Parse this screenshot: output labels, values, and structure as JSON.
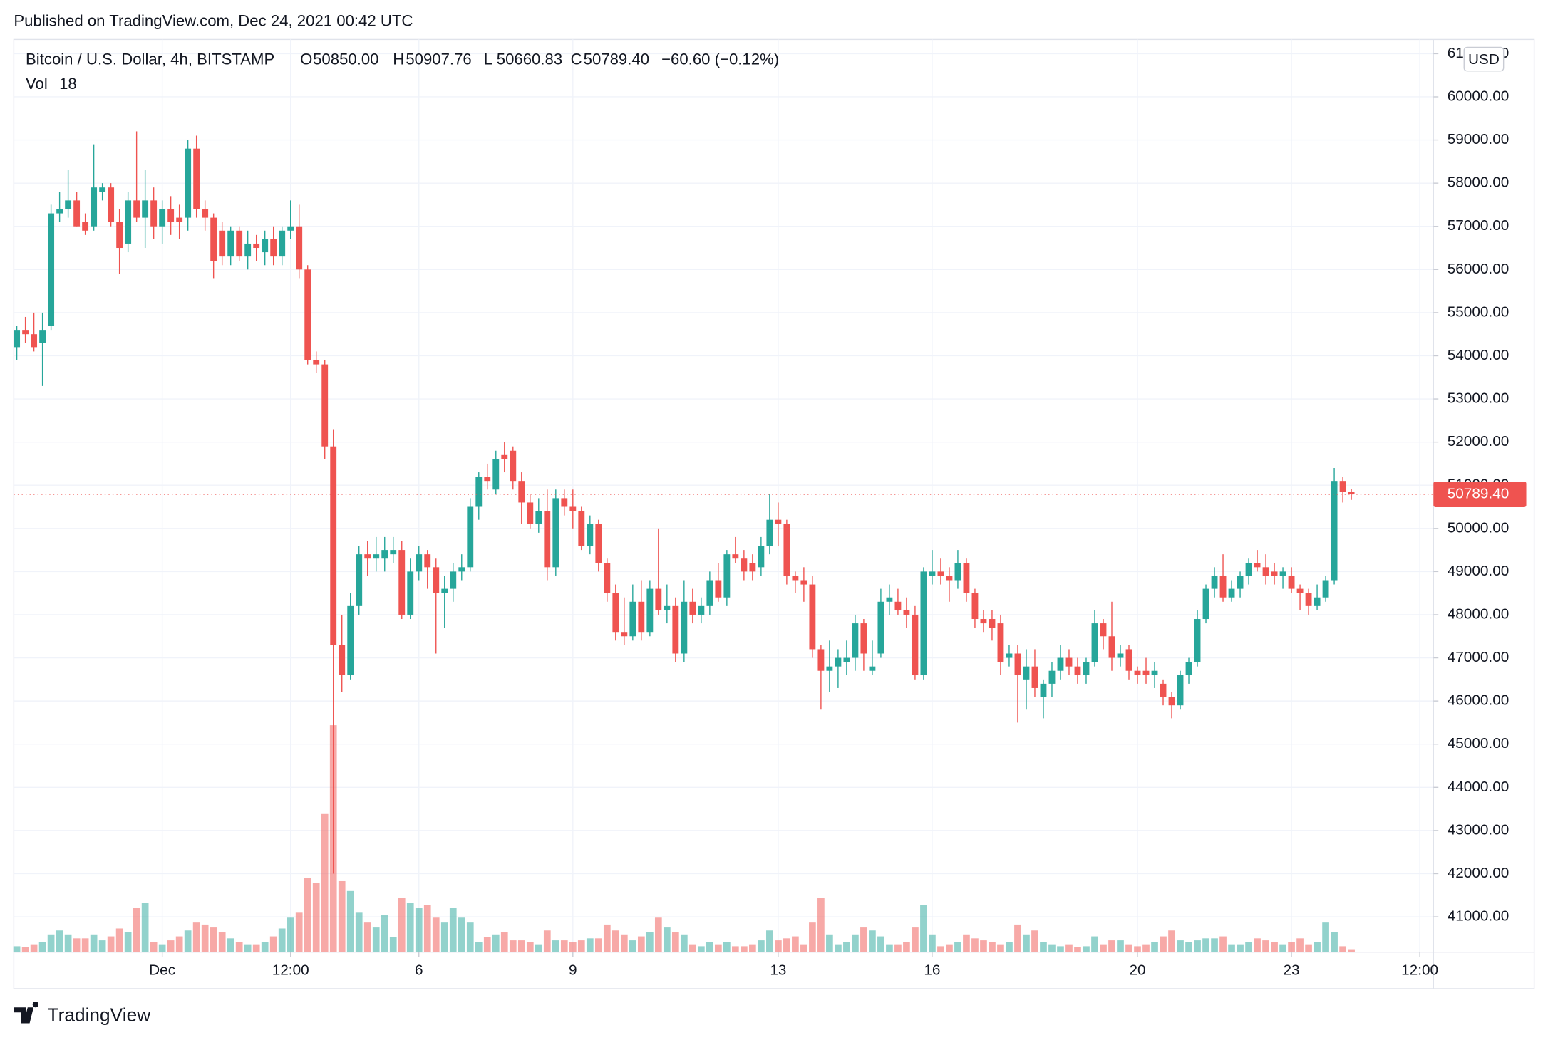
{
  "published": "Published on TradingView.com, Dec 24, 2021 00:42 UTC",
  "brand": "TradingView",
  "chart_data": {
    "type": "candlestick",
    "title": "Bitcoin / U.S. Dollar, 4h, BITSTAMP",
    "ohlc_labels": [
      "O",
      "H",
      "L",
      "C"
    ],
    "ohlc_value_labels": [
      "50850.00",
      "50907.76",
      "50660.83",
      "50789.40"
    ],
    "change_label": "−60.60 (−0.12%)",
    "volume_label": "Vol",
    "currency": "USD",
    "last_price_label": "50789.40",
    "up_color": "#26a69a",
    "down_color": "#ef5350",
    "grid": true,
    "xlim": [
      -0.35,
      165.6
    ],
    "ylim": [
      40180,
      61330
    ],
    "xticks": [
      {
        "value": 17,
        "label": "Dec"
      },
      {
        "value": 32,
        "label": "12:00"
      },
      {
        "value": 47,
        "label": "6"
      },
      {
        "value": 65,
        "label": "9"
      },
      {
        "value": 89,
        "label": "13"
      },
      {
        "value": 107,
        "label": "16"
      },
      {
        "value": 131,
        "label": "20"
      },
      {
        "value": 149,
        "label": "23"
      },
      {
        "value": 164,
        "label": "12:00"
      }
    ],
    "yticks": [
      {
        "value": 41000,
        "label": "41000.00"
      },
      {
        "value": 42000,
        "label": "42000.00"
      },
      {
        "value": 43000,
        "label": "43000.00"
      },
      {
        "value": 44000,
        "label": "44000.00"
      },
      {
        "value": 45000,
        "label": "45000.00"
      },
      {
        "value": 46000,
        "label": "46000.00"
      },
      {
        "value": 47000,
        "label": "47000.00"
      },
      {
        "value": 48000,
        "label": "48000.00"
      },
      {
        "value": 49000,
        "label": "49000.00"
      },
      {
        "value": 50000,
        "label": "50000.00"
      },
      {
        "value": 51000,
        "label": "51000.00"
      },
      {
        "value": 52000,
        "label": "52000.00"
      },
      {
        "value": 53000,
        "label": "53000.00"
      },
      {
        "value": 54000,
        "label": "54000.00"
      },
      {
        "value": 55000,
        "label": "55000.00"
      },
      {
        "value": 56000,
        "label": "56000.00"
      },
      {
        "value": 57000,
        "label": "57000.00"
      },
      {
        "value": 58000,
        "label": "58000.00"
      },
      {
        "value": 59000,
        "label": "59000.00"
      },
      {
        "value": 60000,
        "label": "60000.00"
      },
      {
        "value": 61000,
        "label": "61000.00"
      }
    ],
    "ohlc": [
      [
        54200,
        54700,
        53900,
        54600
      ],
      [
        54600,
        54900,
        54300,
        54500
      ],
      [
        54500,
        55000,
        54100,
        54200
      ],
      [
        54300,
        55000,
        53300,
        54600
      ],
      [
        54700,
        57500,
        54600,
        57300
      ],
      [
        57300,
        57800,
        57100,
        57400
      ],
      [
        57400,
        58300,
        57200,
        57600
      ],
      [
        57600,
        57800,
        57000,
        57000
      ],
      [
        57100,
        57300,
        56800,
        56900
      ],
      [
        57000,
        58900,
        56900,
        57900
      ],
      [
        57800,
        58000,
        57600,
        57900
      ],
      [
        57900,
        58000,
        57000,
        57100
      ],
      [
        57100,
        57400,
        55900,
        56500
      ],
      [
        56600,
        57800,
        56400,
        57600
      ],
      [
        57600,
        59200,
        57100,
        57200
      ],
      [
        57200,
        58300,
        56500,
        57600
      ],
      [
        57600,
        57900,
        56700,
        57000
      ],
      [
        57000,
        57600,
        56600,
        57400
      ],
      [
        57400,
        57700,
        56800,
        57100
      ],
      [
        57200,
        57500,
        56700,
        57100
      ],
      [
        57200,
        59000,
        56900,
        58800
      ],
      [
        58800,
        59100,
        57200,
        57400
      ],
      [
        57400,
        57600,
        56900,
        57200
      ],
      [
        57200,
        57300,
        55800,
        56200
      ],
      [
        56900,
        57100,
        56100,
        56300
      ],
      [
        56300,
        57000,
        56100,
        56900
      ],
      [
        56900,
        57000,
        56200,
        56300
      ],
      [
        56300,
        56900,
        56000,
        56600
      ],
      [
        56600,
        56800,
        56200,
        56500
      ],
      [
        56400,
        56900,
        56100,
        56700
      ],
      [
        56700,
        57000,
        56100,
        56300
      ],
      [
        56300,
        57000,
        56100,
        56900
      ],
      [
        56900,
        57600,
        56700,
        57000
      ],
      [
        57000,
        57500,
        55800,
        56000
      ],
      [
        56000,
        56100,
        53800,
        53900
      ],
      [
        53900,
        54100,
        53600,
        53800
      ],
      [
        53800,
        53900,
        51600,
        51900
      ],
      [
        51900,
        52300,
        42000,
        47300
      ],
      [
        47300,
        48000,
        46200,
        46600
      ],
      [
        46600,
        48500,
        46500,
        48200
      ],
      [
        48200,
        49600,
        48000,
        49400
      ],
      [
        49400,
        49700,
        48900,
        49300
      ],
      [
        49300,
        49800,
        49000,
        49400
      ],
      [
        49300,
        49800,
        49000,
        49500
      ],
      [
        49400,
        49800,
        49200,
        49500
      ],
      [
        49500,
        49700,
        47900,
        48000
      ],
      [
        48000,
        49300,
        47900,
        49000
      ],
      [
        49000,
        49600,
        48800,
        49400
      ],
      [
        49400,
        49500,
        48600,
        49100
      ],
      [
        49100,
        49300,
        47100,
        48500
      ],
      [
        48500,
        48900,
        47700,
        48600
      ],
      [
        48600,
        49200,
        48300,
        49000
      ],
      [
        49000,
        49400,
        48800,
        49100
      ],
      [
        49100,
        50700,
        49000,
        50500
      ],
      [
        50500,
        51300,
        50200,
        51200
      ],
      [
        51200,
        51500,
        50900,
        51100
      ],
      [
        50900,
        51800,
        50800,
        51600
      ],
      [
        51700,
        52000,
        51300,
        51600
      ],
      [
        51800,
        51900,
        50900,
        51100
      ],
      [
        51100,
        51300,
        50100,
        50600
      ],
      [
        50600,
        50800,
        50000,
        50100
      ],
      [
        50100,
        50700,
        49900,
        50400
      ],
      [
        50400,
        50900,
        48800,
        49100
      ],
      [
        49100,
        50900,
        48900,
        50700
      ],
      [
        50700,
        50900,
        50300,
        50500
      ],
      [
        50500,
        50900,
        50000,
        50400
      ],
      [
        50400,
        50500,
        49500,
        49600
      ],
      [
        49600,
        50300,
        49400,
        50100
      ],
      [
        50100,
        50200,
        49000,
        49200
      ],
      [
        49200,
        49300,
        48300,
        48500
      ],
      [
        48500,
        48700,
        47400,
        47600
      ],
      [
        47600,
        48400,
        47300,
        47500
      ],
      [
        47500,
        48700,
        47400,
        48300
      ],
      [
        48300,
        48800,
        47400,
        47600
      ],
      [
        47600,
        48800,
        47500,
        48600
      ],
      [
        48600,
        50000,
        48000,
        48100
      ],
      [
        48100,
        48700,
        47800,
        48200
      ],
      [
        48200,
        48400,
        46900,
        47100
      ],
      [
        47100,
        48800,
        46900,
        48300
      ],
      [
        48300,
        48600,
        47800,
        48000
      ],
      [
        48000,
        48400,
        47800,
        48200
      ],
      [
        48200,
        49000,
        48000,
        48800
      ],
      [
        48800,
        49200,
        48300,
        48400
      ],
      [
        48400,
        49500,
        48200,
        49400
      ],
      [
        49400,
        49800,
        49200,
        49300
      ],
      [
        49300,
        49500,
        48800,
        49000
      ],
      [
        49200,
        49400,
        48800,
        49000
      ],
      [
        49100,
        49800,
        48900,
        49600
      ],
      [
        49600,
        50800,
        49400,
        50200
      ],
      [
        50200,
        50600,
        49600,
        50100
      ],
      [
        50100,
        50200,
        48700,
        48900
      ],
      [
        48900,
        49000,
        48500,
        48800
      ],
      [
        48800,
        49100,
        48300,
        48700
      ],
      [
        48700,
        48900,
        47000,
        47200
      ],
      [
        47200,
        47300,
        45800,
        46700
      ],
      [
        46700,
        47400,
        46200,
        46800
      ],
      [
        46800,
        47200,
        46300,
        47000
      ],
      [
        46900,
        47400,
        46600,
        47000
      ],
      [
        47000,
        48000,
        46700,
        47800
      ],
      [
        47800,
        47900,
        46700,
        47100
      ],
      [
        46700,
        47400,
        46600,
        46800
      ],
      [
        47100,
        48600,
        47000,
        48300
      ],
      [
        48300,
        48700,
        48000,
        48400
      ],
      [
        48300,
        48600,
        48000,
        48100
      ],
      [
        48100,
        48400,
        47700,
        48000
      ],
      [
        48000,
        48200,
        46500,
        46600
      ],
      [
        46600,
        49100,
        46500,
        49000
      ],
      [
        48900,
        49500,
        48700,
        49000
      ],
      [
        49000,
        49300,
        48700,
        48900
      ],
      [
        48900,
        49100,
        48300,
        48800
      ],
      [
        48800,
        49500,
        48600,
        49200
      ],
      [
        49200,
        49300,
        48300,
        48500
      ],
      [
        48500,
        48600,
        47700,
        47900
      ],
      [
        47900,
        48100,
        47600,
        47800
      ],
      [
        47900,
        48100,
        47400,
        47700
      ],
      [
        47800,
        48000,
        46600,
        46900
      ],
      [
        47000,
        47300,
        46800,
        47100
      ],
      [
        47100,
        47300,
        45500,
        46600
      ],
      [
        46500,
        47200,
        45800,
        46800
      ],
      [
        46800,
        47200,
        46100,
        46300
      ],
      [
        46100,
        46500,
        45600,
        46400
      ],
      [
        46400,
        46900,
        46100,
        46700
      ],
      [
        46700,
        47300,
        46500,
        47000
      ],
      [
        47000,
        47200,
        46600,
        46800
      ],
      [
        46800,
        47000,
        46400,
        46600
      ],
      [
        46600,
        47000,
        46400,
        46900
      ],
      [
        46900,
        48100,
        46800,
        47800
      ],
      [
        47800,
        47900,
        47200,
        47500
      ],
      [
        47500,
        48300,
        46700,
        47000
      ],
      [
        47000,
        47300,
        46800,
        47100
      ],
      [
        47200,
        47300,
        46500,
        46700
      ],
      [
        46700,
        46800,
        46400,
        46600
      ],
      [
        46700,
        47000,
        46400,
        46600
      ],
      [
        46600,
        46900,
        46300,
        46700
      ],
      [
        46400,
        46500,
        45900,
        46100
      ],
      [
        46100,
        46200,
        45600,
        45900
      ],
      [
        45900,
        46700,
        45800,
        46600
      ],
      [
        46600,
        47000,
        46400,
        46900
      ],
      [
        46900,
        48100,
        46800,
        47900
      ],
      [
        47900,
        48700,
        47800,
        48600
      ],
      [
        48600,
        49100,
        48400,
        48900
      ],
      [
        48900,
        49400,
        48300,
        48400
      ],
      [
        48400,
        48800,
        48300,
        48600
      ],
      [
        48600,
        49000,
        48400,
        48900
      ],
      [
        48900,
        49300,
        48700,
        49200
      ],
      [
        49200,
        49500,
        49000,
        49100
      ],
      [
        49100,
        49400,
        48700,
        48900
      ],
      [
        49000,
        49200,
        48700,
        48900
      ],
      [
        48900,
        49100,
        48600,
        49000
      ],
      [
        48900,
        49100,
        48500,
        48600
      ],
      [
        48600,
        48700,
        48100,
        48500
      ],
      [
        48500,
        48600,
        48000,
        48200
      ],
      [
        48200,
        48700,
        48100,
        48400
      ],
      [
        48400,
        48900,
        48300,
        48800
      ],
      [
        48800,
        51400,
        48700,
        51100
      ],
      [
        51100,
        51200,
        50600,
        50850
      ],
      [
        50850,
        50907.76,
        50660.83,
        50789.4
      ]
    ],
    "volume": [
      36,
      30,
      48,
      60,
      108,
      132,
      108,
      84,
      84,
      108,
      72,
      96,
      144,
      120,
      270,
      300,
      60,
      48,
      72,
      96,
      132,
      180,
      168,
      150,
      120,
      84,
      60,
      48,
      48,
      60,
      96,
      144,
      210,
      240,
      450,
      420,
      840,
      1380,
      432,
      372,
      240,
      180,
      150,
      228,
      90,
      330,
      300,
      270,
      288,
      210,
      180,
      270,
      210,
      180,
      60,
      90,
      108,
      120,
      72,
      72,
      60,
      48,
      132,
      72,
      72,
      60,
      72,
      84,
      84,
      168,
      132,
      108,
      72,
      96,
      120,
      210,
      150,
      120,
      108,
      48,
      36,
      60,
      48,
      60,
      36,
      36,
      48,
      72,
      132,
      72,
      84,
      96,
      48,
      180,
      330,
      108,
      48,
      60,
      108,
      150,
      132,
      96,
      48,
      48,
      60,
      150,
      288,
      108,
      36,
      48,
      60,
      108,
      84,
      72,
      60,
      48,
      60,
      168,
      108,
      132,
      60,
      48,
      36,
      48,
      30,
      36,
      96,
      48,
      72,
      72,
      48,
      36,
      48,
      60,
      96,
      132,
      72,
      60,
      72,
      84,
      84,
      96,
      48,
      48,
      60,
      84,
      72,
      60,
      48,
      60,
      84,
      48,
      60,
      180,
      120,
      36,
      18
    ]
  }
}
